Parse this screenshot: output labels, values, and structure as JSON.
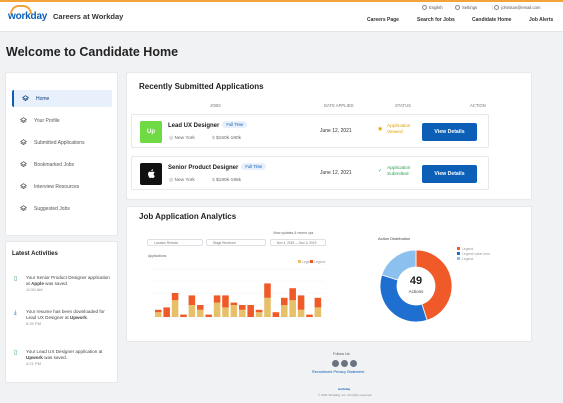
{
  "brand": {
    "logo": "workday",
    "site_title": "Careers at Workday"
  },
  "utility": {
    "language": "English",
    "settings": "Settings",
    "email": "johnstan@email.com"
  },
  "nav": [
    "Careers Page",
    "Search for Jobs",
    "Candidate Home",
    "Job Alerts"
  ],
  "page_title": "Welcome to Candidate Home",
  "sidebar": {
    "items": [
      {
        "label": "Home",
        "icon": "layers-icon",
        "active": true
      },
      {
        "label": "Your Profile",
        "icon": "layers-icon"
      },
      {
        "label": "Submitted Applications",
        "icon": "layers-icon"
      },
      {
        "label": "Bookmarked Jobs",
        "icon": "layers-icon"
      },
      {
        "label": "Interview Resources",
        "icon": "layers-icon"
      },
      {
        "label": "Suggested Jobs",
        "icon": "layers-icon"
      }
    ]
  },
  "activities": {
    "title": "Latest Activities",
    "items": [
      {
        "pre": "Your Senior Product Designer application at ",
        "strong": "Apple",
        "post": " was saved.",
        "time": "11:50 AM",
        "icon": "bookmark-icon"
      },
      {
        "pre": "Your resume has been downloaded for Lead UX Designer at ",
        "strong": "Upwork",
        "post": ".",
        "time": "6:29 PM",
        "icon": "download-icon"
      },
      {
        "pre": "Your Lead UX Designer application at ",
        "strong": "Upwork",
        "post": " was saved.",
        "time": "4:21 PM",
        "icon": "bookmark-icon"
      }
    ]
  },
  "applications": {
    "title": "Recently Submitted Applications",
    "headers": [
      "JOBS",
      "DATE APPLIED",
      "STATUS",
      "ACTION"
    ],
    "rows": [
      {
        "logo": "Up",
        "logo_color": "#6fda44",
        "title": "Lead UX Designer",
        "type": "Full Time",
        "location": "New York",
        "salary": "$150k-180k",
        "date": "June 12, 2021",
        "status_line1": "Application",
        "status_line2": "Viewed",
        "status_color": "#e0a100",
        "action": "View Details"
      },
      {
        "logo": "",
        "logo_color": "#111111",
        "title": "Senior Product Designer",
        "type": "Full Time",
        "location": "New York",
        "salary": "$180k-195k",
        "date": "June 12, 2021",
        "status_line1": "Application",
        "status_line2": "Submitted",
        "status_color": "#2e9e4f",
        "action": "View Details"
      }
    ]
  },
  "analytics": {
    "title": "Job Application Analytics",
    "filter_label": "View updates & recent ups",
    "filters": [
      "Location Remote",
      "Stage Received",
      "Nov 4, 2019 — Nov 4, 2019"
    ],
    "bar_title": "Applications",
    "bar_legend": [
      "Legend",
      "Legend"
    ],
    "donut_title": "Action Distribution",
    "donut_total": "49",
    "donut_caption": "Actions",
    "donut_legend": [
      "Legend",
      "Legend value here",
      "Legend"
    ]
  },
  "chart_data": [
    {
      "type": "bar",
      "title": "Applications",
      "series": [
        {
          "color": "#e8c06a",
          "values": [
            2,
            0,
            7,
            0,
            5,
            3,
            0,
            6,
            4,
            5,
            3,
            0,
            2,
            8,
            0,
            5,
            7,
            3,
            0,
            4
          ]
        },
        {
          "color": "#f05a28",
          "values": [
            1,
            4,
            3,
            1,
            4,
            2,
            1,
            3,
            5,
            1,
            2,
            5,
            1,
            6,
            2,
            3,
            5,
            6,
            1,
            4
          ]
        }
      ],
      "ylim": [
        0,
        20
      ]
    },
    {
      "type": "pie",
      "title": "Action Distribution",
      "total": 49,
      "slices": [
        {
          "value": 45,
          "color": "#f05a28"
        },
        {
          "value": 35,
          "color": "#1f6fd1"
        },
        {
          "value": 20,
          "color": "#8cc0ee"
        }
      ]
    }
  ],
  "footer": {
    "follow": "Follow Us",
    "links": "Recruitment Privacy Statement",
    "copyright": "© 2021 Workday, Inc. All rights reserved."
  }
}
